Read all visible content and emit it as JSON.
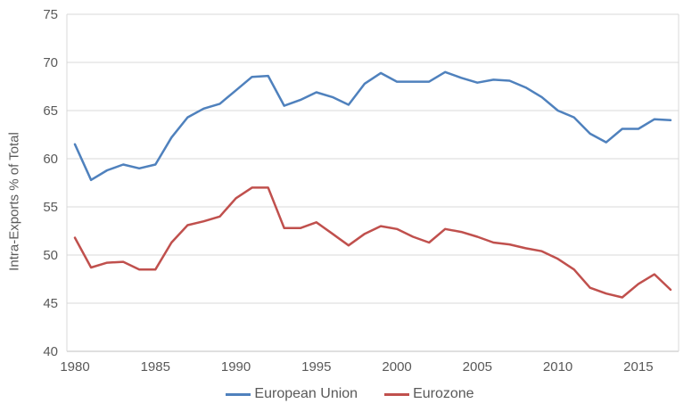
{
  "chart_data": {
    "type": "line",
    "title": "",
    "xlabel": "",
    "ylabel": "Intra-Exports % of Total",
    "x": [
      1980,
      1981,
      1982,
      1983,
      1984,
      1985,
      1986,
      1987,
      1988,
      1989,
      1990,
      1991,
      1992,
      1993,
      1994,
      1995,
      1996,
      1997,
      1998,
      1999,
      2000,
      2001,
      2002,
      2003,
      2004,
      2005,
      2006,
      2007,
      2008,
      2009,
      2010,
      2011,
      2012,
      2013,
      2014,
      2015,
      2016,
      2017
    ],
    "series": [
      {
        "name": "European Union",
        "color": "#4F81BD",
        "values": [
          61.5,
          57.8,
          58.8,
          59.4,
          59.0,
          59.4,
          62.2,
          64.3,
          65.2,
          65.7,
          67.1,
          68.5,
          68.6,
          65.5,
          66.1,
          66.9,
          66.4,
          65.6,
          67.8,
          68.9,
          68.0,
          68.0,
          68.0,
          69.0,
          68.4,
          67.9,
          68.2,
          68.1,
          67.4,
          66.4,
          65.0,
          64.3,
          62.6,
          61.7,
          63.1,
          63.1,
          64.1,
          64.0
        ]
      },
      {
        "name": "Eurozone",
        "color": "#C0504D",
        "values": [
          51.8,
          48.7,
          49.2,
          49.3,
          48.5,
          48.5,
          51.3,
          53.1,
          53.5,
          54.0,
          55.9,
          57.0,
          57.0,
          52.8,
          52.8,
          53.4,
          52.2,
          51.0,
          52.2,
          53.0,
          52.7,
          51.9,
          51.3,
          52.7,
          52.4,
          51.9,
          51.3,
          51.1,
          50.7,
          50.4,
          49.6,
          48.5,
          46.6,
          46.0,
          45.6,
          47.0,
          48.0,
          46.4
        ]
      }
    ],
    "ylim": [
      40,
      75
    ],
    "yticks": [
      40,
      45,
      50,
      55,
      60,
      65,
      70,
      75
    ],
    "xticks": [
      1980,
      1985,
      1990,
      1995,
      2000,
      2005,
      2010,
      2015
    ],
    "grid": "horizontal",
    "legend_position": "bottom-center"
  },
  "style": {
    "text_color": "#595959",
    "gridline_color": "#D9D9D9",
    "axis_line_color": "#BFBFBF",
    "background": "#FFFFFF",
    "line_width": 2.5
  }
}
